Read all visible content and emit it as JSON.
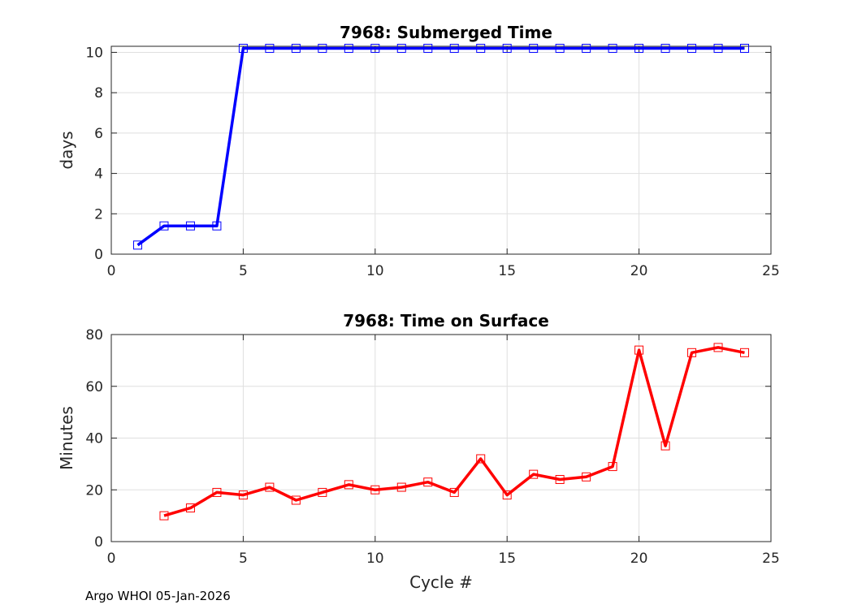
{
  "footer": "Argo WHOI 05-Jan-2026",
  "chart_data": [
    {
      "type": "line",
      "title": "7968: Submerged Time",
      "xlabel": "",
      "ylabel": "days",
      "xlim": [
        0,
        25
      ],
      "ylim": [
        0,
        10.3
      ],
      "xticks": [
        0,
        5,
        10,
        15,
        20,
        25
      ],
      "yticks": [
        0,
        2,
        4,
        6,
        8,
        10
      ],
      "grid": true,
      "color": "#0000ff",
      "marker": "square",
      "series": [
        {
          "x": [
            1,
            2,
            3,
            4,
            5,
            6,
            7,
            8,
            9,
            10,
            11,
            12,
            13,
            14,
            15,
            16,
            17,
            18,
            19,
            20,
            21,
            22,
            23,
            24
          ],
          "values": [
            0.45,
            1.4,
            1.4,
            1.4,
            10.2,
            10.2,
            10.2,
            10.2,
            10.2,
            10.2,
            10.2,
            10.2,
            10.2,
            10.2,
            10.2,
            10.2,
            10.2,
            10.2,
            10.2,
            10.2,
            10.2,
            10.2,
            10.2,
            10.2
          ]
        }
      ]
    },
    {
      "type": "line",
      "title": "7968: Time on Surface",
      "xlabel": "Cycle #",
      "ylabel": "Minutes",
      "xlim": [
        0,
        25
      ],
      "ylim": [
        0,
        80
      ],
      "xticks": [
        0,
        5,
        10,
        15,
        20,
        25
      ],
      "yticks": [
        0,
        20,
        40,
        60,
        80
      ],
      "grid": true,
      "color": "#ff0000",
      "marker": "square",
      "series": [
        {
          "x": [
            2,
            3,
            4,
            5,
            6,
            7,
            8,
            9,
            10,
            11,
            12,
            13,
            14,
            15,
            16,
            17,
            18,
            19,
            20,
            21,
            22,
            23,
            24
          ],
          "values": [
            10,
            13,
            19,
            18,
            21,
            16,
            19,
            22,
            20,
            21,
            23,
            19,
            32,
            18,
            26,
            24,
            25,
            29,
            74,
            37,
            73,
            75,
            73
          ]
        }
      ]
    }
  ]
}
